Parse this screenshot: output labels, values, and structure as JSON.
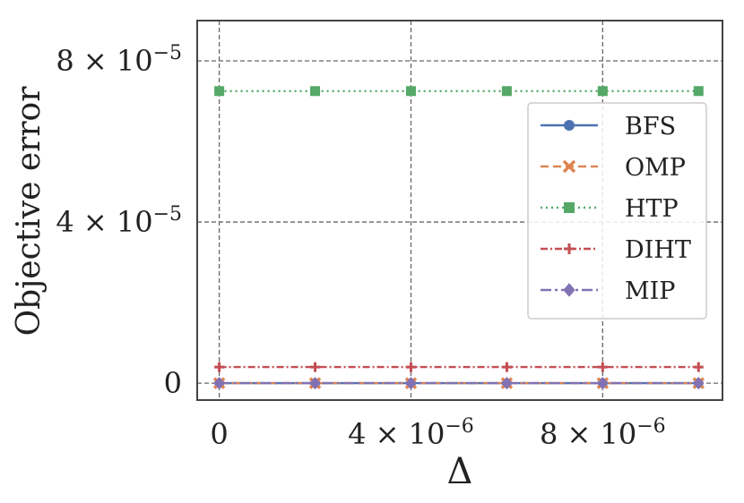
{
  "chart_data": {
    "type": "line",
    "xlabel": "Δ",
    "ylabel": "Objective error",
    "x": [
      0,
      2e-06,
      4e-06,
      6e-06,
      8e-06,
      1e-05
    ],
    "xlim": [
      -4.6e-07,
      1.05e-05
    ],
    "ylim": [
      -4.2e-06,
      9e-05
    ],
    "x_ticks": [
      0,
      4e-06,
      8e-06
    ],
    "y_ticks": [
      0,
      4e-05,
      8e-05
    ],
    "grid": true,
    "legend_position": "right",
    "series": [
      {
        "name": "BFS",
        "values": [
          0,
          0,
          0,
          0,
          0,
          0
        ],
        "color": "#4c72b0",
        "dash": "",
        "marker": "circle"
      },
      {
        "name": "OMP",
        "values": [
          0,
          0,
          0,
          0,
          0,
          0
        ],
        "color": "#dd8452",
        "dash": "9,5",
        "marker": "x"
      },
      {
        "name": "HTP",
        "values": [
          7.25e-05,
          7.25e-05,
          7.25e-05,
          7.25e-05,
          7.25e-05,
          7.25e-05
        ],
        "color": "#55a868",
        "dash": "2,4",
        "marker": "square"
      },
      {
        "name": "DIHT",
        "values": [
          4e-06,
          4e-06,
          4e-06,
          4e-06,
          4e-06,
          4e-06
        ],
        "color": "#c44e52",
        "dash": "8,3,2,3",
        "marker": "plus"
      },
      {
        "name": "MIP",
        "values": [
          0,
          0,
          0,
          0,
          0,
          0
        ],
        "color": "#8172b3",
        "dash": "12,4,3,4",
        "marker": "diamond"
      }
    ]
  }
}
